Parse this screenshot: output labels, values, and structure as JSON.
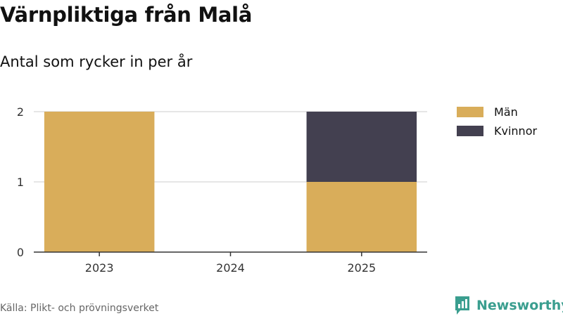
{
  "header": {
    "title": "Värnpliktiga från Malå",
    "subtitle": "Antal som rycker in per år"
  },
  "footer": {
    "source": "Källa: Plikt- och prövningsverket",
    "brand": "Newsworthy",
    "brand_icon": "chart-logo-icon",
    "brand_color": "#3a9e8f"
  },
  "colors": {
    "men": "#d9ad5a",
    "women": "#434050",
    "grid": "#dddddd",
    "axis": "#333333"
  },
  "chart_data": {
    "type": "bar",
    "stacked": true,
    "title": "Värnpliktiga från Malå",
    "subtitle": "Antal som rycker in per år",
    "categories": [
      "2023",
      "2024",
      "2025"
    ],
    "series": [
      {
        "name": "Män",
        "values": [
          2,
          0,
          1
        ],
        "color": "#d9ad5a"
      },
      {
        "name": "Kvinnor",
        "values": [
          0,
          0,
          1
        ],
        "color": "#434050"
      }
    ],
    "ylim": [
      0,
      2
    ],
    "yticks": [
      0,
      1,
      2
    ],
    "grid": true,
    "legend": "top-right"
  }
}
